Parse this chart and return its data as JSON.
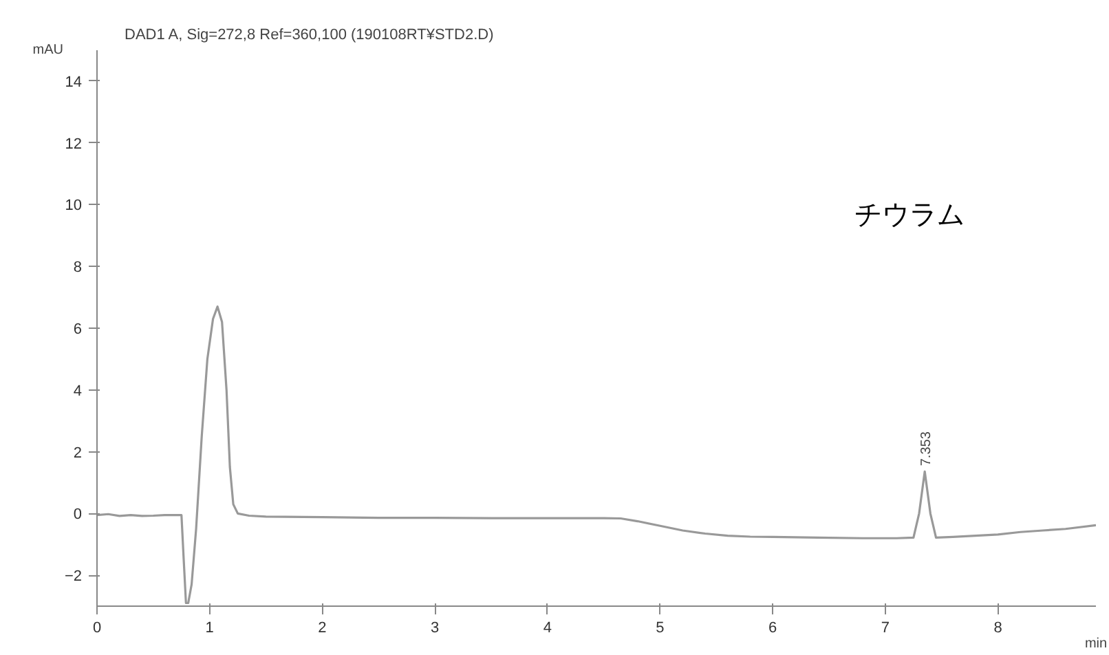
{
  "chart_data": {
    "type": "line",
    "title": "DAD1 A, Sig=272,8 Ref=360,100 (190108RT¥STD2.D)",
    "ylabel": "mAU",
    "xlabel": "min",
    "x": [
      0,
      0.1,
      0.2,
      0.3,
      0.4,
      0.5,
      0.6,
      0.7,
      0.75,
      0.77,
      0.79,
      0.81,
      0.84,
      0.88,
      0.93,
      0.98,
      1.03,
      1.07,
      1.11,
      1.15,
      1.18,
      1.21,
      1.25,
      1.35,
      1.5,
      2,
      2.5,
      3,
      3.5,
      4,
      4.5,
      4.65,
      4.8,
      5,
      5.2,
      5.4,
      5.6,
      5.8,
      6,
      6.4,
      6.8,
      7.1,
      7.25,
      7.3,
      7.35,
      7.4,
      7.45,
      7.6,
      7.8,
      8,
      8.2,
      8.4,
      8.6,
      8.87
    ],
    "series": [
      {
        "color": "#999999",
        "values": [
          -0.05,
          -0.02,
          -0.08,
          -0.05,
          -0.08,
          -0.07,
          -0.05,
          -0.05,
          -0.05,
          -1.5,
          -2.9,
          -2.9,
          -2.3,
          -0.5,
          2.5,
          5,
          6.3,
          6.7,
          6.2,
          4.0,
          1.5,
          0.3,
          0.0,
          -0.07,
          -0.1,
          -0.12,
          -0.14,
          -0.14,
          -0.15,
          -0.15,
          -0.15,
          -0.16,
          -0.25,
          -0.4,
          -0.55,
          -0.65,
          -0.72,
          -0.75,
          -0.76,
          -0.78,
          -0.8,
          -0.8,
          -0.78,
          0.0,
          1.36,
          0.0,
          -0.78,
          -0.76,
          -0.72,
          -0.68,
          -0.6,
          -0.55,
          -0.5,
          -0.38
        ]
      }
    ],
    "xlim": [
      0,
      8.87
    ],
    "ylim": [
      -3,
      15
    ],
    "xticks": [
      0,
      1,
      2,
      3,
      4,
      5,
      6,
      7,
      8
    ],
    "yticks": [
      -2,
      0,
      2,
      4,
      6,
      8,
      10,
      12,
      14
    ],
    "grid": false,
    "annotations": [
      "チウラム",
      {
        "text": "7.353",
        "x": 7.353,
        "y": 1.36
      }
    ]
  }
}
